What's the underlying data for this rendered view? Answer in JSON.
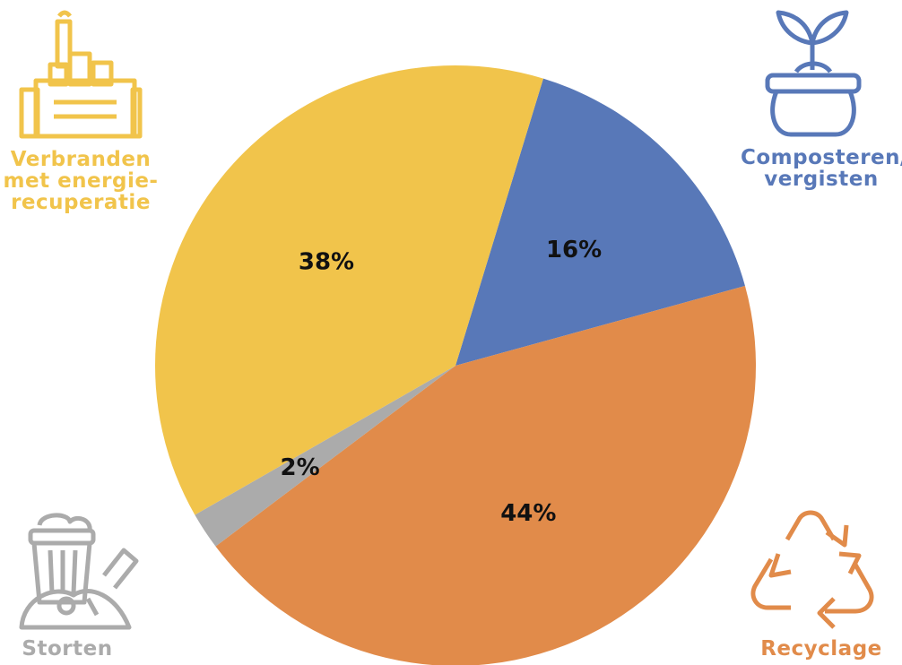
{
  "chart_data": {
    "type": "pie",
    "slices": [
      {
        "label": "Composteren/\nvergisten",
        "value": 16,
        "display": "16%",
        "color": "#5878b8",
        "icon": "plant-pot-icon"
      },
      {
        "label": "Recyclage",
        "value": 44,
        "display": "44%",
        "color": "#e18b4a",
        "icon": "recycle-icon"
      },
      {
        "label": "Storten",
        "value": 2,
        "display": "2%",
        "color": "#ababab",
        "icon": "trash-bin-icon"
      },
      {
        "label": "Verbranden\nmet energie-\nrecuperatie",
        "value": 38,
        "display": "38%",
        "color": "#f1c44b",
        "icon": "factory-icon"
      }
    ]
  }
}
